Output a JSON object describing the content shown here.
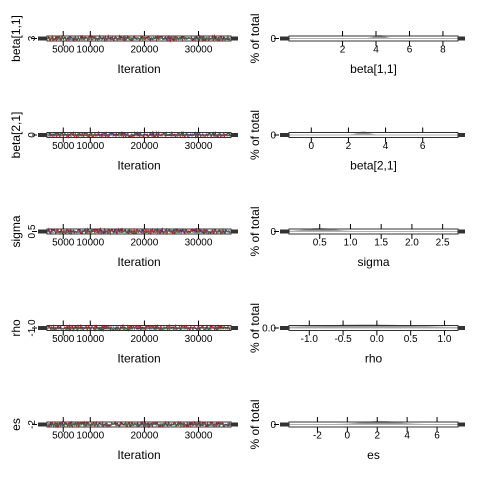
{
  "colors": {
    "background": "#ffffff",
    "axis": "#000000",
    "trace_chain_1": "#cc1e2a",
    "trace_chain_2": "#2a2a9a",
    "trace_chain_3": "#3a8a3a",
    "density_fill": "#9a9a9a",
    "density_line": "#b0b0b0",
    "box_edge": "#333333"
  },
  "chart_data": [
    {
      "type": "line",
      "panel": "trace",
      "xlabel": "Iteration",
      "ylabel": "beta[1,1]",
      "xlim": [
        2000,
        36000
      ],
      "x_ticks": [
        5000,
        10000,
        20000,
        30000
      ],
      "x_tick_labels": [
        "5000",
        "10000",
        "20000",
        "30000"
      ],
      "y_ticks": [
        3
      ],
      "y_tick_labels": [
        "3"
      ],
      "series": [
        {
          "color": "#cc1e2a",
          "center": 3.0,
          "spread": 0.08
        },
        {
          "color": "#2a2a9a",
          "center": 3.0,
          "spread": 0.05
        },
        {
          "color": "#3a8a3a",
          "center": 3.0,
          "spread": 0.04
        }
      ]
    },
    {
      "type": "area",
      "panel": "density",
      "xlabel": "beta[1,1]",
      "ylabel": "% of total",
      "xlim": [
        -1.2,
        8.9
      ],
      "x_ticks": [
        2,
        4,
        6,
        8
      ],
      "x_tick_labels": [
        "2",
        "4",
        "6",
        "8"
      ],
      "y_ticks": [
        0
      ],
      "y_tick_labels": [
        "0"
      ],
      "density": {
        "mode": 4.2,
        "width": 0.3
      }
    },
    {
      "type": "line",
      "panel": "trace",
      "xlabel": "Iteration",
      "ylabel": "beta[2,1]",
      "xlim": [
        2000,
        36000
      ],
      "x_ticks": [
        5000,
        10000,
        20000,
        30000
      ],
      "x_tick_labels": [
        "5000",
        "10000",
        "20000",
        "30000"
      ],
      "y_ticks": [
        0
      ],
      "y_tick_labels": [
        "0"
      ],
      "series": [
        {
          "color": "#cc1e2a",
          "center": 0.0,
          "spread": 0.1
        },
        {
          "color": "#2a2a9a",
          "center": 0.0,
          "spread": 0.06
        },
        {
          "color": "#3a8a3a",
          "center": 0.0,
          "spread": 0.05
        }
      ]
    },
    {
      "type": "area",
      "panel": "density",
      "xlabel": "beta[2,1]",
      "ylabel": "% of total",
      "xlim": [
        -1.2,
        7.9
      ],
      "x_ticks": [
        0,
        2,
        4,
        6
      ],
      "x_tick_labels": [
        "0",
        "2",
        "4",
        "6"
      ],
      "y_ticks": [
        0
      ],
      "y_tick_labels": [
        "0"
      ],
      "density": {
        "mode": 2.8,
        "width": 0.3
      }
    },
    {
      "type": "line",
      "panel": "trace",
      "xlabel": "Iteration",
      "ylabel": "sigma",
      "xlim": [
        2000,
        36000
      ],
      "x_ticks": [
        5000,
        10000,
        20000,
        30000
      ],
      "x_tick_labels": [
        "5000",
        "10000",
        "20000",
        "30000"
      ],
      "y_ticks": [
        0.5
      ],
      "y_tick_labels": [
        "0.5"
      ],
      "series": [
        {
          "color": "#cc1e2a",
          "center": 0.5,
          "spread": 0.02
        },
        {
          "color": "#2a2a9a",
          "center": 0.5,
          "spread": 0.015
        },
        {
          "color": "#3a8a3a",
          "center": 0.5,
          "spread": 0.012
        }
      ]
    },
    {
      "type": "area",
      "panel": "density",
      "xlabel": "sigma",
      "ylabel": "% of total",
      "xlim": [
        0.0,
        2.75
      ],
      "x_ticks": [
        0.5,
        1.0,
        1.5,
        2.0,
        2.5
      ],
      "x_tick_labels": [
        "0.5",
        "1.0",
        "1.5",
        "2.0",
        "2.5"
      ],
      "y_ticks": [
        0
      ],
      "y_tick_labels": [
        "0"
      ],
      "density": {
        "mode": 0.5,
        "width": 0.22
      }
    },
    {
      "type": "line",
      "panel": "trace",
      "xlabel": "Iteration",
      "ylabel": "rho",
      "xlim": [
        2000,
        36000
      ],
      "x_ticks": [
        5000,
        10000,
        20000,
        30000
      ],
      "x_tick_labels": [
        "5000",
        "10000",
        "20000",
        "30000"
      ],
      "y_ticks": [
        -1.0
      ],
      "y_tick_labels": [
        "-1.0"
      ],
      "series": [
        {
          "color": "#cc1e2a",
          "center": -1.0,
          "spread": 0.5
        },
        {
          "color": "#2a2a9a",
          "center": -1.0,
          "spread": 0.3
        },
        {
          "color": "#3a8a3a",
          "center": -1.0,
          "spread": 0.3
        }
      ]
    },
    {
      "type": "area",
      "panel": "density",
      "xlabel": "rho",
      "ylabel": "% of total",
      "xlim": [
        -1.3,
        1.2
      ],
      "x_ticks": [
        -1.0,
        -0.5,
        0.0,
        0.5,
        1.0
      ],
      "x_tick_labels": [
        "-1.0",
        "-0.5",
        "0.0",
        "0.5",
        "1.0"
      ],
      "y_ticks": [
        0.0
      ],
      "y_tick_labels": [
        "0.0"
      ],
      "density": {
        "mode": -0.15,
        "width": 0.75
      }
    },
    {
      "type": "line",
      "panel": "trace",
      "xlabel": "Iteration",
      "ylabel": "es",
      "xlim": [
        2000,
        36000
      ],
      "x_ticks": [
        5000,
        10000,
        20000,
        30000
      ],
      "x_tick_labels": [
        "5000",
        "10000",
        "20000",
        "30000"
      ],
      "y_ticks": [
        -2
      ],
      "y_tick_labels": [
        "-2"
      ],
      "series": [
        {
          "color": "#cc1e2a",
          "center": -2.0,
          "spread": 0.5
        },
        {
          "color": "#2a2a9a",
          "center": -2.0,
          "spread": 0.3
        },
        {
          "color": "#3a8a3a",
          "center": -2.0,
          "spread": 0.3
        }
      ]
    },
    {
      "type": "area",
      "panel": "density",
      "xlabel": "es",
      "ylabel": "% of total",
      "xlim": [
        -3.9,
        7.4
      ],
      "x_ticks": [
        -2,
        0,
        2,
        4,
        6
      ],
      "x_tick_labels": [
        "-2",
        "0",
        "2",
        "4",
        "6"
      ],
      "y_ticks": [
        0
      ],
      "y_tick_labels": [
        "0"
      ],
      "density": {
        "mode": 2.2,
        "width": 1.2
      }
    }
  ]
}
